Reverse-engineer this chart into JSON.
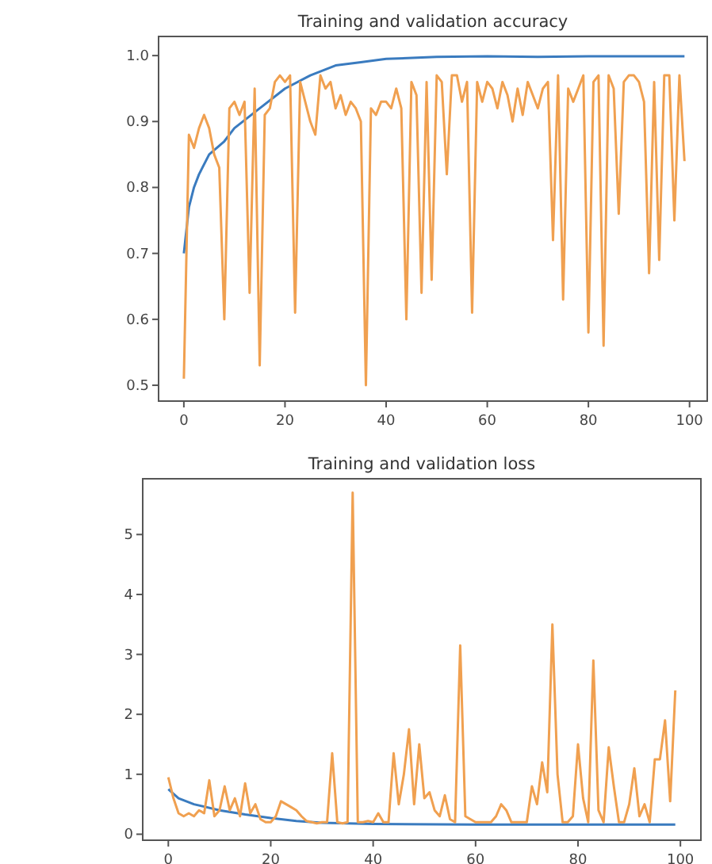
{
  "chart_data": [
    {
      "type": "line",
      "title": "Training and validation accuracy",
      "x": [
        0,
        1,
        2,
        3,
        4,
        5,
        6,
        7,
        8,
        9,
        10,
        11,
        12,
        13,
        14,
        15,
        16,
        17,
        18,
        19,
        20,
        21,
        22,
        23,
        24,
        25,
        26,
        27,
        28,
        29,
        30,
        31,
        32,
        33,
        34,
        35,
        36,
        37,
        38,
        39,
        40,
        41,
        42,
        43,
        44,
        45,
        46,
        47,
        48,
        49,
        50,
        51,
        52,
        53,
        54,
        55,
        56,
        57,
        58,
        59,
        60,
        61,
        62,
        63,
        64,
        65,
        66,
        67,
        68,
        69,
        70,
        71,
        72,
        73,
        74,
        75,
        76,
        77,
        78,
        79,
        80,
        81,
        82,
        83,
        84,
        85,
        86,
        87,
        88,
        89,
        90,
        91,
        92,
        93,
        94,
        95,
        96,
        97,
        98,
        99
      ],
      "series": [
        {
          "color": "#3a7bbf",
          "x": [
            0,
            1,
            2,
            3,
            5,
            8,
            10,
            15,
            20,
            25,
            30,
            35,
            40,
            50,
            60,
            70,
            80,
            99
          ],
          "values": [
            0.7,
            0.77,
            0.8,
            0.82,
            0.85,
            0.87,
            0.89,
            0.92,
            0.95,
            0.97,
            0.985,
            0.99,
            0.995,
            0.998,
            0.999,
            0.998,
            0.999,
            0.999
          ]
        },
        {
          "color": "#f0a050",
          "values": [
            0.51,
            0.88,
            0.86,
            0.89,
            0.91,
            0.89,
            0.85,
            0.83,
            0.6,
            0.92,
            0.93,
            0.91,
            0.93,
            0.64,
            0.95,
            0.53,
            0.91,
            0.92,
            0.96,
            0.97,
            0.96,
            0.97,
            0.61,
            0.96,
            0.93,
            0.9,
            0.88,
            0.97,
            0.95,
            0.96,
            0.92,
            0.94,
            0.91,
            0.93,
            0.92,
            0.9,
            0.5,
            0.92,
            0.91,
            0.93,
            0.93,
            0.92,
            0.95,
            0.92,
            0.6,
            0.96,
            0.94,
            0.64,
            0.96,
            0.66,
            0.97,
            0.96,
            0.82,
            0.97,
            0.97,
            0.93,
            0.96,
            0.61,
            0.96,
            0.93,
            0.96,
            0.95,
            0.92,
            0.96,
            0.94,
            0.9,
            0.95,
            0.91,
            0.96,
            0.94,
            0.92,
            0.95,
            0.96,
            0.72,
            0.97,
            0.63,
            0.95,
            0.93,
            0.95,
            0.97,
            0.58,
            0.96,
            0.97,
            0.56,
            0.97,
            0.95,
            0.76,
            0.96,
            0.97,
            0.97,
            0.96,
            0.93,
            0.67,
            0.96,
            0.69,
            0.97,
            0.97,
            0.75,
            0.97,
            0.84
          ]
        }
      ],
      "xlim": [
        -5,
        103.5
      ],
      "xticks": [
        0,
        20,
        40,
        60,
        80,
        100
      ],
      "ylim": [
        0.476,
        1.029
      ],
      "yticks": [
        0.5,
        0.6,
        0.7,
        0.8,
        0.9,
        {
          "value": 1,
          "label": "1.0"
        }
      ]
    },
    {
      "type": "line",
      "title": "Training and validation loss",
      "x": [
        0,
        1,
        2,
        3,
        4,
        5,
        6,
        7,
        8,
        9,
        10,
        11,
        12,
        13,
        14,
        15,
        16,
        17,
        18,
        19,
        20,
        21,
        22,
        23,
        24,
        25,
        26,
        27,
        28,
        29,
        30,
        31,
        32,
        33,
        34,
        35,
        36,
        37,
        38,
        39,
        40,
        41,
        42,
        43,
        44,
        45,
        46,
        47,
        48,
        49,
        50,
        51,
        52,
        53,
        54,
        55,
        56,
        57,
        58,
        59,
        60,
        61,
        62,
        63,
        64,
        65,
        66,
        67,
        68,
        69,
        70,
        71,
        72,
        73,
        74,
        75,
        76,
        77,
        78,
        79,
        80,
        81,
        82,
        83,
        84,
        85,
        86,
        87,
        88,
        89,
        90,
        91,
        92,
        93,
        94,
        95,
        96,
        97,
        98,
        99
      ],
      "series": [
        {
          "color": "#3a7bbf",
          "x": [
            0,
            2,
            5,
            10,
            15,
            20,
            25,
            30,
            40,
            60,
            99
          ],
          "values": [
            0.75,
            0.6,
            0.5,
            0.4,
            0.33,
            0.27,
            0.22,
            0.19,
            0.17,
            0.16,
            0.16
          ]
        },
        {
          "color": "#f0a050",
          "values": [
            0.95,
            0.6,
            0.35,
            0.3,
            0.35,
            0.3,
            0.4,
            0.35,
            0.9,
            0.3,
            0.4,
            0.8,
            0.4,
            0.6,
            0.3,
            0.85,
            0.35,
            0.5,
            0.25,
            0.2,
            0.2,
            0.3,
            0.55,
            0.5,
            0.45,
            0.4,
            0.3,
            0.22,
            0.2,
            0.18,
            0.2,
            0.2,
            1.35,
            0.2,
            0.18,
            0.2,
            5.7,
            0.2,
            0.2,
            0.22,
            0.2,
            0.35,
            0.2,
            0.2,
            1.35,
            0.5,
            1,
            1.75,
            0.5,
            1.5,
            0.6,
            0.7,
            0.4,
            0.3,
            0.65,
            0.25,
            0.2,
            3.15,
            0.3,
            0.25,
            0.2,
            0.2,
            0.2,
            0.2,
            0.3,
            0.5,
            0.4,
            0.2,
            0.2,
            0.2,
            0.2,
            0.8,
            0.5,
            1.2,
            0.7,
            3.5,
            1,
            0.2,
            0.2,
            0.3,
            1.5,
            0.6,
            0.2,
            2.9,
            0.4,
            0.2,
            1.45,
            0.8,
            0.2,
            0.2,
            0.5,
            1.1,
            0.3,
            0.5,
            0.2,
            1.25,
            1.25,
            1.9,
            0.55,
            2.4
          ]
        }
      ],
      "xlim": [
        -5,
        104
      ],
      "xticks": [
        0,
        20,
        40,
        60,
        80,
        100
      ],
      "ylim": [
        -0.1,
        5.93
      ],
      "yticks": [
        0,
        1,
        2,
        3,
        4,
        5
      ]
    }
  ]
}
